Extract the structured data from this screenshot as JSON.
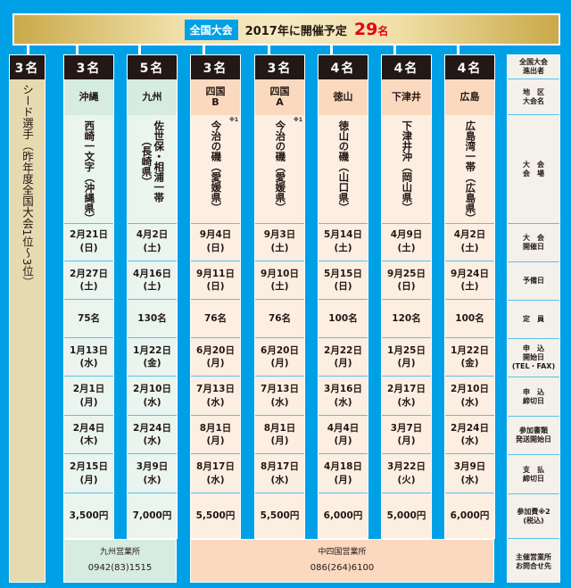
{
  "banner": {
    "badge": "全国大会",
    "text": "2017年に開催予定",
    "count": "29",
    "unit": "名"
  },
  "seed": {
    "count": "3名",
    "text": "シード選手（昨年度全国大会1位～3位）"
  },
  "columns": [
    {
      "count": "3名",
      "region": "沖縄",
      "venue": "西崎一文字",
      "pref": "（沖縄県）",
      "note": "",
      "group": "kyushu",
      "start": [
        "2月21日",
        "(日)"
      ],
      "reserve": [
        "2月27日",
        "(土)"
      ],
      "capacity": "75名",
      "apply_open": [
        "1月13日",
        "(水)"
      ],
      "apply_close": [
        "2月1日",
        "(月)"
      ],
      "docs": [
        "2月4日",
        "(木)"
      ],
      "pay": [
        "2月15日",
        "(月)"
      ],
      "fee": "3,500円"
    },
    {
      "count": "5名",
      "region": "九州",
      "venue": "佐世保・相浦一帯",
      "pref": "（長崎県）",
      "note": "",
      "group": "kyushu",
      "start": [
        "4月2日",
        "(土)"
      ],
      "reserve": [
        "4月16日",
        "(土)"
      ],
      "capacity": "130名",
      "apply_open": [
        "1月22日",
        "(金)"
      ],
      "apply_close": [
        "2月10日",
        "(水)"
      ],
      "docs": [
        "2月24日",
        "(水)"
      ],
      "pay": [
        "3月9日",
        "(水)"
      ],
      "fee": "7,000円"
    },
    {
      "count": "3名",
      "region": "四国\nB",
      "venue": "今治の磯",
      "pref": "（愛媛県）",
      "note": "※1",
      "group": "chushikoku",
      "start": [
        "9月4日",
        "(日)"
      ],
      "reserve": [
        "9月11日",
        "(日)"
      ],
      "capacity": "76名",
      "apply_open": [
        "6月20日",
        "(月)"
      ],
      "apply_close": [
        "7月13日",
        "(水)"
      ],
      "docs": [
        "8月1日",
        "(月)"
      ],
      "pay": [
        "8月17日",
        "(水)"
      ],
      "fee": "5,500円"
    },
    {
      "count": "3名",
      "region": "四国\nA",
      "venue": "今治の磯",
      "pref": "（愛媛県）",
      "note": "※1",
      "group": "chushikoku",
      "start": [
        "9月3日",
        "(土)"
      ],
      "reserve": [
        "9月10日",
        "(土)"
      ],
      "capacity": "76名",
      "apply_open": [
        "6月20日",
        "(月)"
      ],
      "apply_close": [
        "7月13日",
        "(水)"
      ],
      "docs": [
        "8月1日",
        "(月)"
      ],
      "pay": [
        "8月17日",
        "(水)"
      ],
      "fee": "5,500円"
    },
    {
      "count": "4名",
      "region": "徳山",
      "venue": "徳山の磯",
      "pref": "（山口県）",
      "note": "",
      "group": "chushikoku",
      "start": [
        "5月14日",
        "(土)"
      ],
      "reserve": [
        "5月15日",
        "(日)"
      ],
      "capacity": "100名",
      "apply_open": [
        "2月22日",
        "(月)"
      ],
      "apply_close": [
        "3月16日",
        "(水)"
      ],
      "docs": [
        "4月4日",
        "(月)"
      ],
      "pay": [
        "4月18日",
        "(月)"
      ],
      "fee": "6,000円"
    },
    {
      "count": "4名",
      "region": "下津井",
      "venue": "下津井沖",
      "pref": "（岡山県）",
      "note": "",
      "group": "chushikoku",
      "start": [
        "4月9日",
        "(土)"
      ],
      "reserve": [
        "9月25日",
        "(日)"
      ],
      "capacity": "120名",
      "apply_open": [
        "1月25日",
        "(月)"
      ],
      "apply_close": [
        "2月17日",
        "(水)"
      ],
      "docs": [
        "3月7日",
        "(月)"
      ],
      "pay": [
        "3月22日",
        "(火)"
      ],
      "fee": "5,000円"
    },
    {
      "count": "4名",
      "region": "広島",
      "venue": "広島湾一帯",
      "pref": "（広島県）",
      "note": "",
      "group": "chushikoku",
      "start": [
        "4月2日",
        "(土)"
      ],
      "reserve": [
        "9月24日",
        "(土)"
      ],
      "capacity": "100名",
      "apply_open": [
        "1月22日",
        "(金)"
      ],
      "apply_close": [
        "2月10日",
        "(水)"
      ],
      "docs": [
        "2月24日",
        "(水)"
      ],
      "pay": [
        "3月9日",
        "(水)"
      ],
      "fee": "6,000円"
    }
  ],
  "legend": [
    "全国大会\n進出者",
    "地　区\n大会名",
    "大　会\n会　場",
    "大　会\n開催日",
    "予備日",
    "定　員",
    "申　込\n開始日\n(TEL・FAX)",
    "申　込\n締切日",
    "参加書類\n発送開始日",
    "支　払\n締切日",
    "参加費※2\n(税込)",
    "主催営業所\nお問合せ先"
  ],
  "footer": [
    {
      "office": "九州営業所",
      "phone": "0942(83)1515"
    },
    {
      "office": "中四国営業所",
      "phone": "086(264)6100"
    }
  ],
  "colors": {
    "background": "#00a0e6",
    "kyushu_body": "#eaf5f0",
    "kyushu_head": "#d6ebe2",
    "chushikoku_body": "#fdeee2",
    "chushikoku_head": "#fbd9bf",
    "seed": "#e6dab0",
    "legend": "#f3f1ea",
    "accent": "#e60012"
  }
}
